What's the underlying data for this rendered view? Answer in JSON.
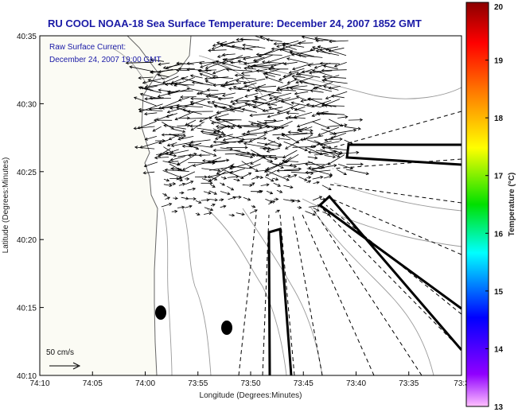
{
  "title": "RU COOL  NOAA-18  Sea Surface Temperature:  December 24, 2007 1852 GMT",
  "annotation": {
    "line1": "Raw Surface Current:",
    "line2": "December 24, 2007 19:00 GMT"
  },
  "scale_label": "50 cm/s",
  "x_axis": {
    "label": "Longitude (Degrees:Minutes)",
    "ticks": [
      "74:10",
      "74:05",
      "74:00",
      "73:55",
      "73:50",
      "73:45",
      "73:40",
      "73:35",
      "73:3"
    ]
  },
  "y_axis": {
    "label": "Latitude (Degrees:Minutes)",
    "ticks": [
      "40:35",
      "40:30",
      "40:25",
      "40:20",
      "40:15",
      "40:10"
    ]
  },
  "colorbar": {
    "label": "Temperature (°C)",
    "ticks": [
      "20",
      "19",
      "18",
      "17",
      "16",
      "15",
      "14",
      "13"
    ],
    "min": 13,
    "max": 20
  },
  "colors": {
    "title": "#1a1aa6",
    "land": "#fbfbf4",
    "coast": "#666666"
  }
}
